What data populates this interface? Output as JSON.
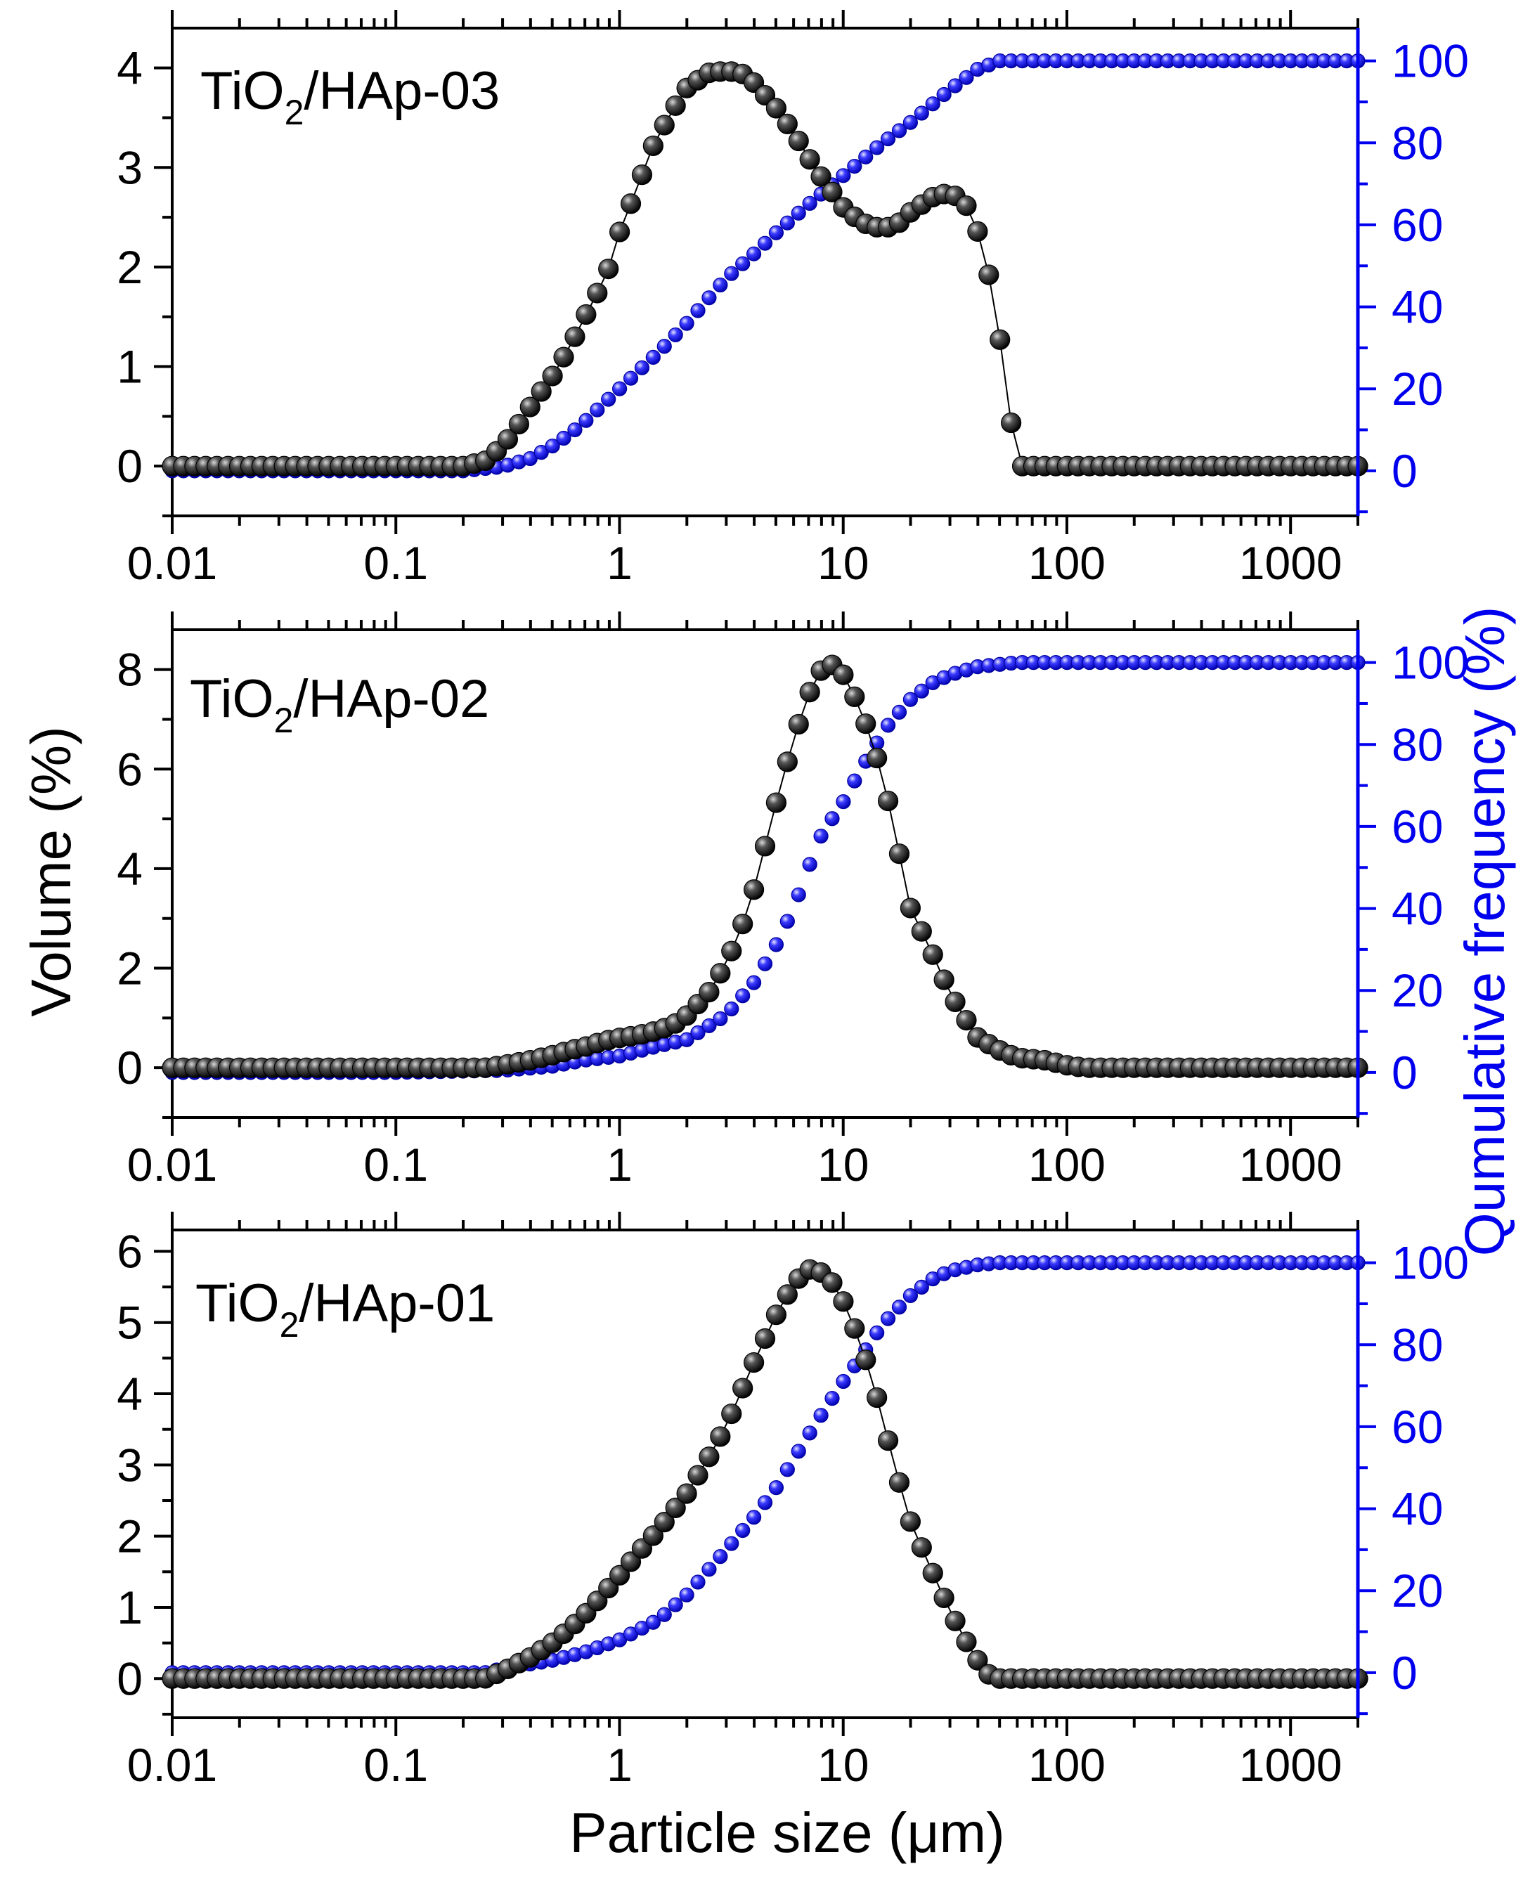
{
  "figure": {
    "xlabel": "Particle size (μm)",
    "ylabel_left": "Volume (%)",
    "ylabel_right": "Qumulative frequency (%)",
    "colors": {
      "volume": "#000000",
      "cumulative": "#0000ee",
      "axis_left": "#000000",
      "axis_right": "#0000ee"
    }
  },
  "chart_data": [
    {
      "type": "scatter",
      "title": "TiO2/HAp-03",
      "title_main": "TiO",
      "title_sub": "2",
      "title_rest": "/HAp-03",
      "xscale": "log",
      "xlim": [
        0.01,
        2000
      ],
      "xticks": [
        0.01,
        0.1,
        1,
        10,
        100,
        1000
      ],
      "xtick_labels": [
        "0.01",
        "0.1",
        "1",
        "10",
        "100",
        "1000"
      ],
      "ylim_left": [
        -0.5,
        4.4
      ],
      "yticks_left": [
        0,
        1,
        2,
        3,
        4
      ],
      "ylim_right": [
        -11,
        108
      ],
      "yticks_right": [
        0,
        20,
        40,
        60,
        80,
        100
      ],
      "series": [
        {
          "name": "Volume",
          "axis": "left",
          "x": [
            0.01,
            0.1,
            0.2,
            0.25,
            0.3,
            0.35,
            0.4,
            0.5,
            0.6,
            0.7,
            0.8,
            0.9,
            1.0,
            1.2,
            1.4,
            1.7,
            2.0,
            2.5,
            3.0,
            3.5,
            4.0,
            5.0,
            6.0,
            7.0,
            8.0,
            10,
            12,
            14,
            16,
            18,
            20,
            25,
            30,
            35,
            40,
            45,
            50,
            55,
            60,
            100,
            1000,
            2000
          ],
          "y": [
            0,
            0,
            0,
            0.05,
            0.2,
            0.4,
            0.6,
            0.9,
            1.2,
            1.5,
            1.75,
            2.0,
            2.35,
            2.8,
            3.2,
            3.55,
            3.8,
            3.95,
            3.97,
            3.95,
            3.85,
            3.6,
            3.35,
            3.1,
            2.9,
            2.6,
            2.45,
            2.4,
            2.4,
            2.45,
            2.55,
            2.7,
            2.75,
            2.65,
            2.35,
            1.9,
            1.3,
            0.6,
            0,
            0,
            0,
            0
          ]
        },
        {
          "name": "Cumulative",
          "axis": "right",
          "x": [
            0.01,
            0.1,
            0.2,
            0.3,
            0.4,
            0.5,
            0.6,
            0.7,
            0.8,
            1.0,
            1.5,
            2.0,
            3.0,
            4.0,
            5.0,
            7.0,
            10,
            15,
            20,
            30,
            40,
            50,
            60,
            100,
            1000,
            2000
          ],
          "y": [
            0,
            0,
            0,
            1,
            3,
            6,
            9,
            12,
            15,
            20,
            29,
            36,
            47,
            53,
            58,
            65,
            72,
            80,
            85,
            93,
            98,
            100,
            100,
            100,
            100,
            100
          ]
        }
      ]
    },
    {
      "type": "scatter",
      "title": "TiO2/HAp-02",
      "title_main": "TiO",
      "title_sub": "2",
      "title_rest": "/HAp-02",
      "xscale": "log",
      "xlim": [
        0.01,
        2000
      ],
      "xticks": [
        0.01,
        0.1,
        1,
        10,
        100,
        1000
      ],
      "xtick_labels": [
        "0.01",
        "0.1",
        "1",
        "10",
        "100",
        "1000"
      ],
      "ylim_left": [
        -1.0,
        8.8
      ],
      "yticks_left": [
        0,
        2,
        4,
        6,
        8
      ],
      "ylim_right": [
        -11,
        108
      ],
      "yticks_right": [
        0,
        20,
        40,
        60,
        80,
        100
      ],
      "series": [
        {
          "name": "Volume",
          "axis": "left",
          "x": [
            0.01,
            0.1,
            0.25,
            0.3,
            0.4,
            0.5,
            0.6,
            0.7,
            0.8,
            0.9,
            1.0,
            1.2,
            1.4,
            1.6,
            1.8,
            2.0,
            2.5,
            3.0,
            3.5,
            4.0,
            4.5,
            5.0,
            6.0,
            7.0,
            8.0,
            9.0,
            10,
            12,
            14,
            16,
            18,
            20,
            25,
            30,
            35,
            40,
            50,
            60,
            80,
            100,
            120,
            1000,
            2000
          ],
          "y": [
            0,
            0,
            0,
            0.05,
            0.15,
            0.25,
            0.35,
            0.42,
            0.5,
            0.56,
            0.6,
            0.65,
            0.72,
            0.8,
            0.9,
            1.05,
            1.5,
            2.1,
            2.8,
            3.6,
            4.5,
            5.3,
            6.6,
            7.5,
            8.0,
            8.1,
            7.9,
            7.2,
            6.3,
            5.3,
            4.2,
            3.2,
            2.3,
            1.5,
            1.0,
            0.6,
            0.35,
            0.2,
            0.15,
            0.05,
            0,
            0,
            0
          ]
        },
        {
          "name": "Cumulative",
          "axis": "right",
          "x": [
            0.01,
            0.1,
            0.3,
            0.5,
            0.7,
            1.0,
            1.5,
            2.0,
            3.0,
            4.0,
            5.0,
            6.0,
            7.0,
            8.0,
            10,
            12,
            14,
            16,
            20,
            25,
            30,
            40,
            60,
            100,
            1000,
            2000
          ],
          "y": [
            0,
            0,
            0.5,
            1.5,
            3,
            4,
            6.5,
            8,
            14,
            22,
            31,
            40,
            50,
            58,
            66,
            74,
            80,
            85,
            91,
            95,
            97,
            99,
            100,
            100,
            100,
            100
          ]
        }
      ]
    },
    {
      "type": "scatter",
      "title": "TiO2/HAp-01",
      "title_main": "TiO",
      "title_sub": "2",
      "title_rest": "/HAp-01",
      "xscale": "log",
      "xlim": [
        0.01,
        2000
      ],
      "xticks": [
        0.01,
        0.1,
        1,
        10,
        100,
        1000
      ],
      "xtick_labels": [
        "0.01",
        "0.1",
        "1",
        "10",
        "100",
        "1000"
      ],
      "ylim_left": [
        -0.55,
        6.3
      ],
      "yticks_left": [
        0,
        1,
        2,
        3,
        4,
        5,
        6
      ],
      "ylim_right": [
        -11,
        108
      ],
      "yticks_right": [
        0,
        20,
        40,
        60,
        80,
        100
      ],
      "series": [
        {
          "name": "Volume",
          "axis": "left",
          "x": [
            0.01,
            0.1,
            0.25,
            0.3,
            0.4,
            0.5,
            0.6,
            0.7,
            0.8,
            1.0,
            1.2,
            1.5,
            2.0,
            2.5,
            3.0,
            4.0,
            5.0,
            6.0,
            7.0,
            8.0,
            9.0,
            10,
            12,
            14,
            16,
            18,
            20,
            25,
            30,
            35,
            40,
            45,
            50,
            100,
            1000,
            2000
          ],
          "y": [
            0,
            0,
            0,
            0.1,
            0.3,
            0.5,
            0.7,
            0.9,
            1.1,
            1.45,
            1.75,
            2.1,
            2.6,
            3.1,
            3.55,
            4.45,
            5.1,
            5.55,
            5.75,
            5.7,
            5.55,
            5.3,
            4.7,
            4.0,
            3.3,
            2.7,
            2.2,
            1.5,
            0.95,
            0.55,
            0.25,
            0.05,
            0,
            0,
            0,
            0
          ]
        },
        {
          "name": "Cumulative",
          "axis": "right",
          "x": [
            0.01,
            0.1,
            0.25,
            0.3,
            0.5,
            0.7,
            1.0,
            1.5,
            2.0,
            3.0,
            4.0,
            5.0,
            6.0,
            7.0,
            8.0,
            10,
            12,
            15,
            20,
            25,
            30,
            40,
            50,
            100,
            1000,
            2000
          ],
          "y": [
            0,
            0,
            0,
            1,
            3,
            5,
            8,
            13,
            19,
            30,
            38,
            45,
            52,
            58,
            63,
            71,
            77,
            85,
            92,
            96,
            98,
            99.5,
            100,
            100,
            100,
            100
          ]
        }
      ]
    }
  ]
}
